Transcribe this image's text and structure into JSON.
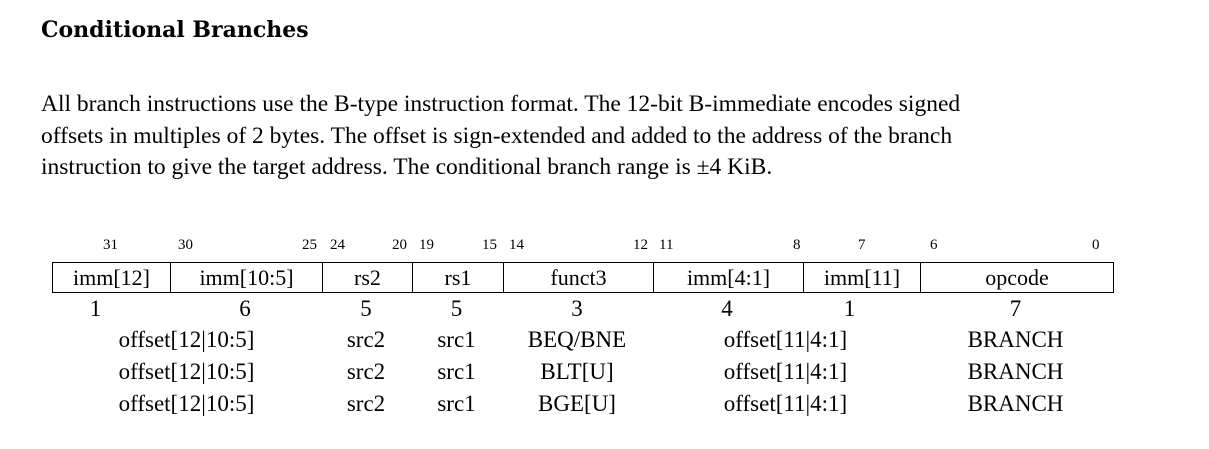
{
  "heading": "Conditional Branches",
  "paragraph": {
    "line1": "All branch instructions use the B-type instruction format. The 12-bit B-immediate encodes signed",
    "line2": "offsets in multiples of 2 bytes. The offset is sign-extended and added to the address of the branch",
    "line3": "instruction to give the target address. The conditional branch range is ±4 KiB."
  },
  "encoding": {
    "bit_labels": [
      "31",
      "30",
      "25",
      "24",
      "20",
      "19",
      "15",
      "14",
      "12",
      "11",
      "8",
      "7",
      "6",
      "0"
    ],
    "fields": [
      "imm[12]",
      "imm[10:5]",
      "rs2",
      "rs1",
      "funct3",
      "imm[4:1]",
      "imm[11]",
      "opcode"
    ],
    "widths": [
      "1",
      "6",
      "5",
      "5",
      "3",
      "4",
      "1",
      "7"
    ],
    "rows": [
      {
        "offset_hi": "offset[12|10:5]",
        "src2": "src2",
        "src1": "src1",
        "funct3": "BEQ/BNE",
        "offset_lo": "offset[11|4:1]",
        "opcode": "BRANCH"
      },
      {
        "offset_hi": "offset[12|10:5]",
        "src2": "src2",
        "src1": "src1",
        "funct3": "BLT[U]",
        "offset_lo": "offset[11|4:1]",
        "opcode": "BRANCH"
      },
      {
        "offset_hi": "offset[12|10:5]",
        "src2": "src2",
        "src1": "src1",
        "funct3": "BGE[U]",
        "offset_lo": "offset[11|4:1]",
        "opcode": "BRANCH"
      }
    ]
  }
}
